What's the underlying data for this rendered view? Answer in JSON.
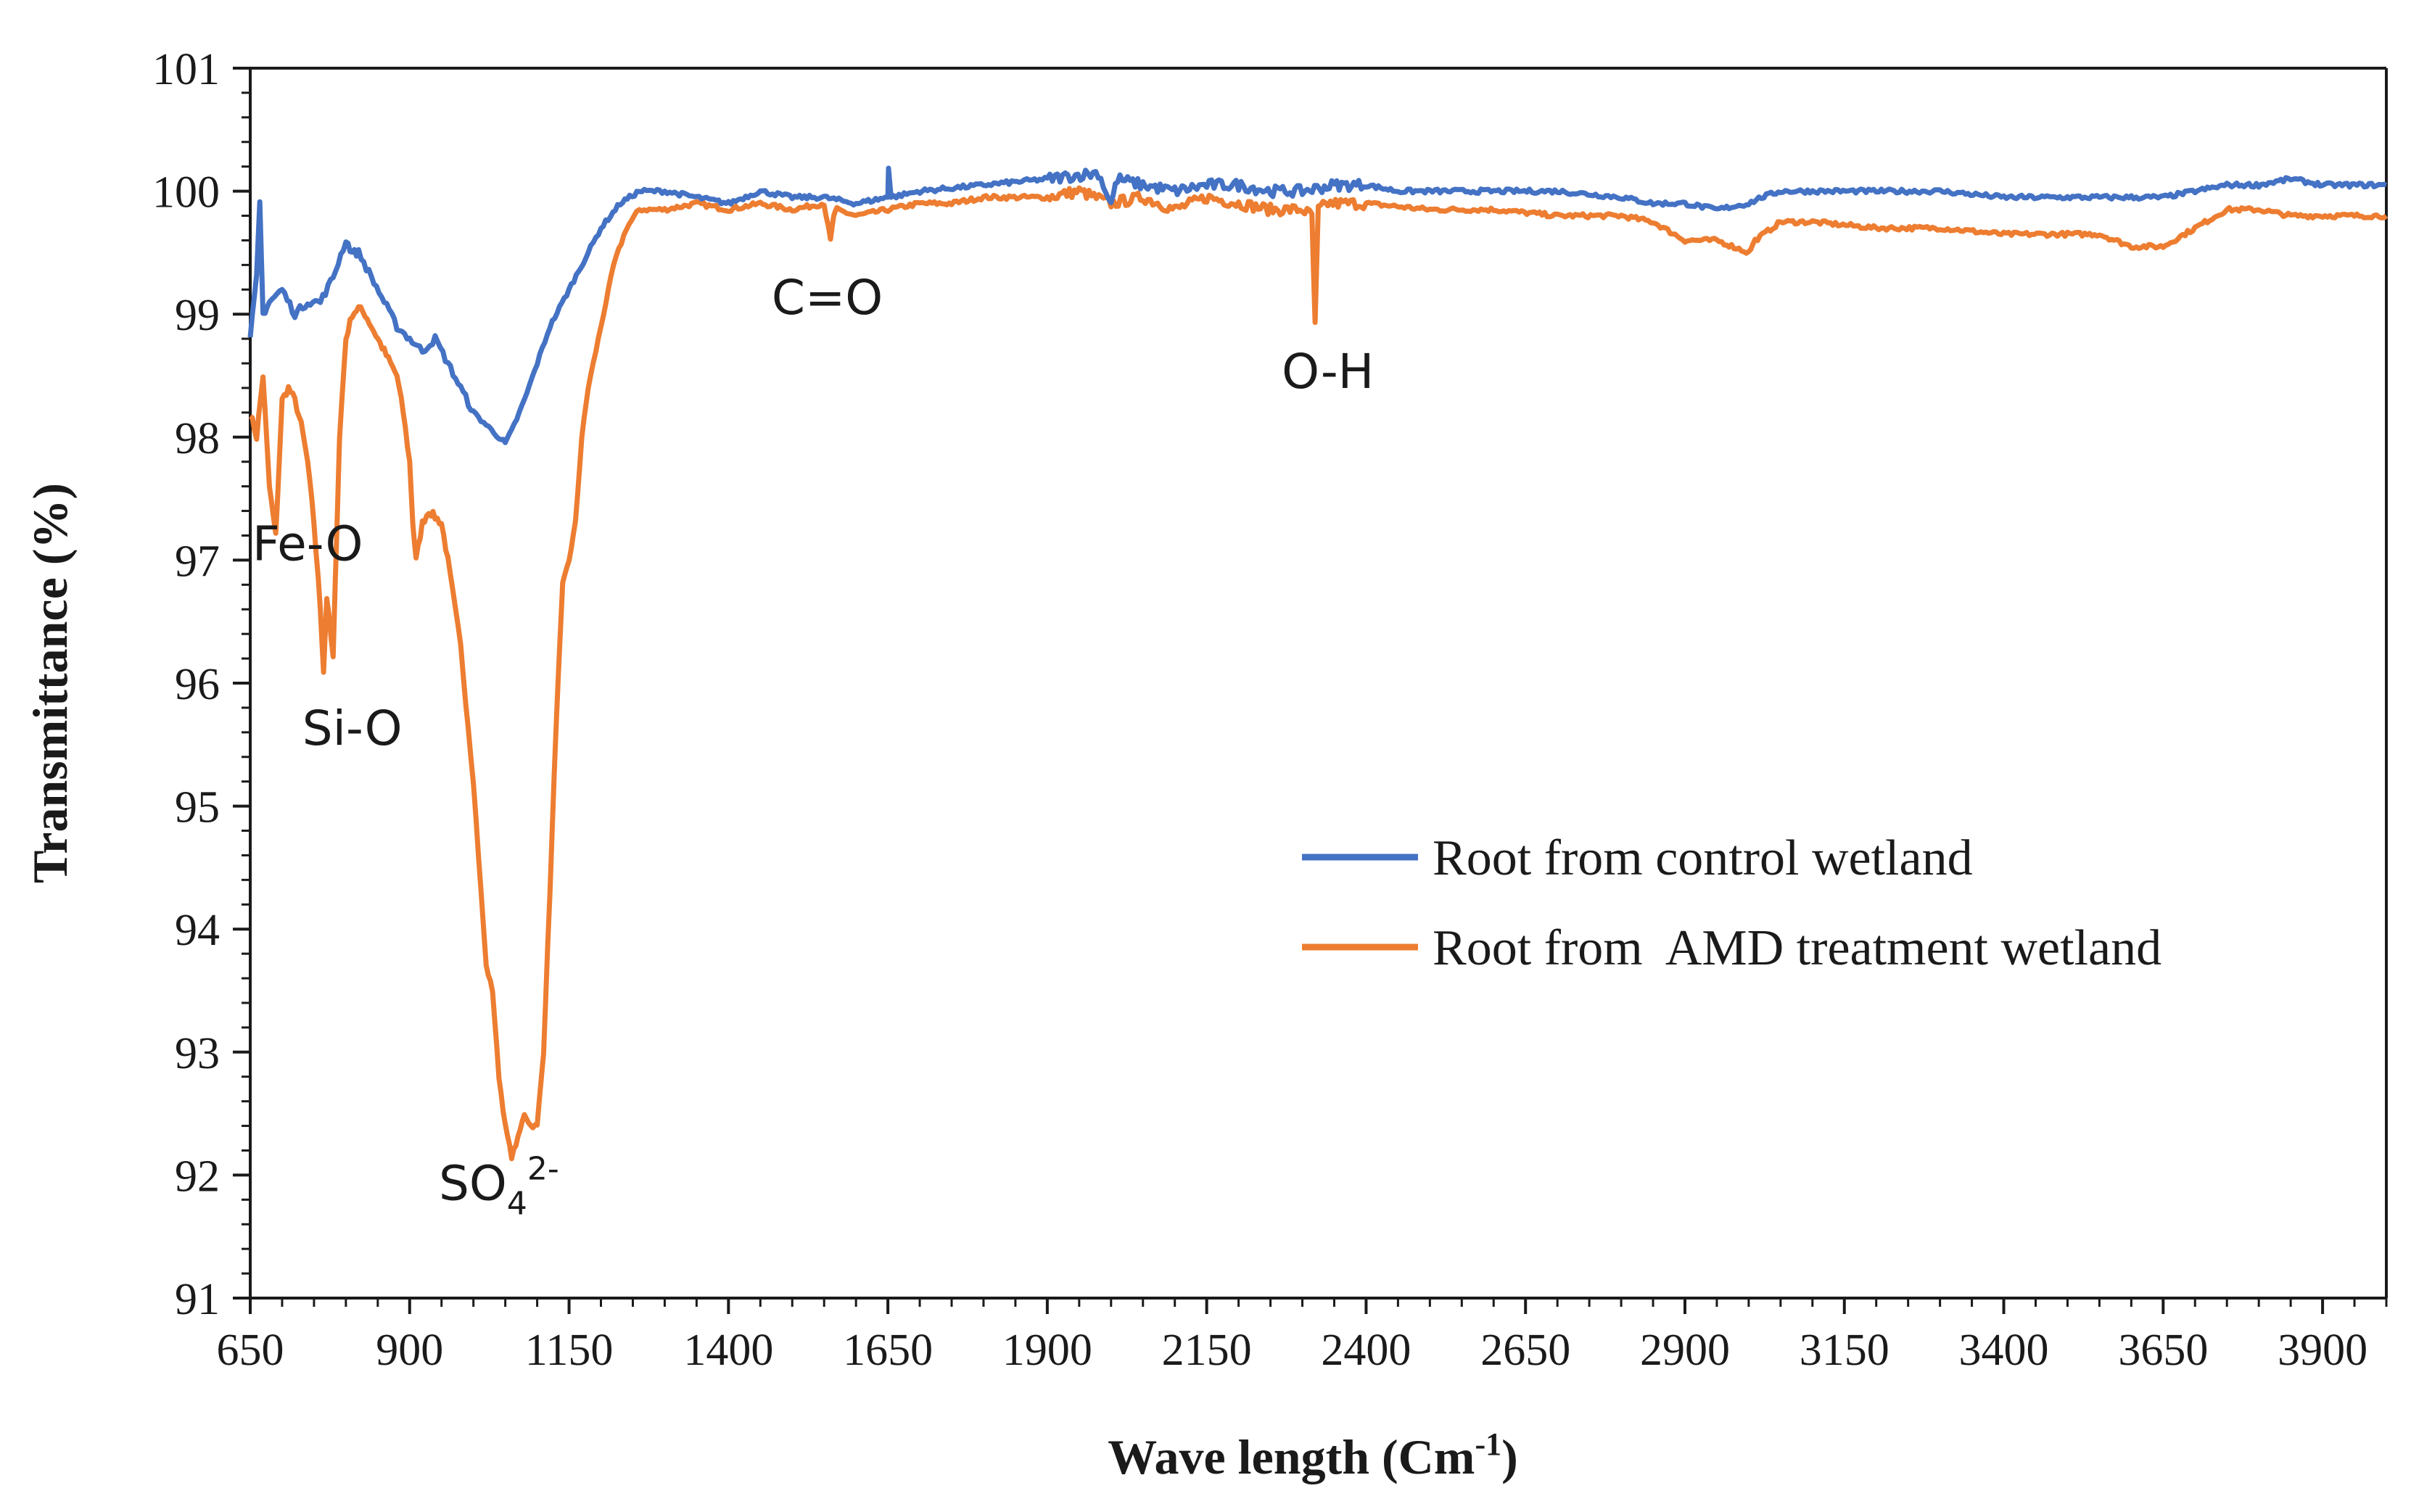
{
  "chart_data": {
    "type": "line",
    "title": "",
    "xlabel": "Wave length (Cm",
    "xlabel_sup": "-1",
    "xlabel_close": ")",
    "ylabel": "Transmittance  (%)",
    "xlim": [
      650,
      4000
    ],
    "ylim": [
      91,
      101
    ],
    "xticks": [
      650,
      900,
      1150,
      1400,
      1650,
      1900,
      2150,
      2400,
      2650,
      2900,
      3150,
      3400,
      3650,
      3900
    ],
    "yticks": [
      91,
      92,
      93,
      94,
      95,
      96,
      97,
      98,
      99,
      100,
      101
    ],
    "grid": false,
    "legend_position": "right-middle",
    "series": [
      {
        "name": "Root from control wetland",
        "color": "#4472c4",
        "x": [
          650,
          660,
          665,
          670,
          680,
          700,
          720,
          740,
          760,
          780,
          800,
          810,
          820,
          840,
          860,
          880,
          900,
          920,
          940,
          960,
          980,
          1000,
          1020,
          1040,
          1050,
          1060,
          1080,
          1100,
          1120,
          1150,
          1180,
          1200,
          1230,
          1260,
          1300,
          1350,
          1400,
          1450,
          1500,
          1550,
          1600,
          1650,
          1651,
          1655,
          1700,
          1800,
          1900,
          1980,
          2000,
          2010,
          2050,
          2100,
          2150,
          2200,
          2250,
          2300,
          2350,
          2400,
          2450,
          2500,
          2600,
          2700,
          2800,
          2850,
          2900,
          2950,
          3000,
          3020,
          3050,
          3100,
          3200,
          3300,
          3400,
          3500,
          3550,
          3600,
          3650,
          3700,
          3750,
          3800,
          3850,
          3900,
          3950,
          4000
        ],
        "y": [
          98.8,
          99.3,
          99.9,
          99.0,
          99.1,
          99.2,
          99.0,
          99.1,
          99.1,
          99.3,
          99.6,
          99.5,
          99.5,
          99.3,
          99.1,
          98.9,
          98.8,
          98.7,
          98.8,
          98.6,
          98.4,
          98.2,
          98.1,
          98.0,
          97.95,
          98.05,
          98.3,
          98.6,
          98.9,
          99.2,
          99.5,
          99.7,
          99.9,
          100.0,
          100.0,
          99.95,
          99.9,
          100.0,
          99.95,
          99.95,
          99.9,
          99.95,
          100.2,
          99.95,
          100.0,
          100.05,
          100.1,
          100.15,
          99.9,
          100.1,
          100.05,
          100.0,
          100.05,
          100.05,
          100.0,
          100.0,
          100.05,
          100.05,
          100.0,
          100.0,
          100.0,
          100.0,
          99.95,
          99.9,
          99.9,
          99.85,
          99.9,
          99.95,
          100.0,
          100.0,
          100.0,
          100.0,
          99.95,
          99.95,
          99.95,
          99.95,
          99.95,
          100.0,
          100.05,
          100.05,
          100.1,
          100.05,
          100.05,
          100.05
        ]
      },
      {
        "name": "Root from  AMD treatment wetland",
        "color": "#ed7d31",
        "x": [
          650,
          660,
          670,
          680,
          690,
          700,
          710,
          720,
          730,
          740,
          750,
          760,
          765,
          770,
          780,
          790,
          800,
          810,
          820,
          830,
          840,
          850,
          860,
          870,
          880,
          890,
          900,
          905,
          910,
          920,
          930,
          940,
          950,
          960,
          980,
          1000,
          1020,
          1030,
          1040,
          1050,
          1060,
          1070,
          1080,
          1090,
          1100,
          1110,
          1120,
          1130,
          1140,
          1150,
          1160,
          1170,
          1180,
          1200,
          1220,
          1240,
          1260,
          1280,
          1300,
          1350,
          1400,
          1450,
          1500,
          1550,
          1560,
          1565,
          1570,
          1600,
          1650,
          1700,
          1750,
          1800,
          1900,
          1950,
          2000,
          2050,
          2100,
          2150,
          2200,
          2250,
          2300,
          2315,
          2320,
          2325,
          2340,
          2400,
          2500,
          2600,
          2700,
          2800,
          2850,
          2900,
          2950,
          3000,
          3010,
          3050,
          3100,
          3200,
          3300,
          3400,
          3500,
          3550,
          3600,
          3620,
          3650,
          3700,
          3750,
          3800,
          3850,
          3900,
          3950,
          4000
        ],
        "y": [
          98.2,
          98.0,
          98.5,
          97.6,
          97.2,
          98.3,
          98.4,
          98.3,
          98.1,
          97.8,
          97.3,
          96.6,
          96.1,
          96.7,
          96.2,
          98.0,
          98.8,
          99.0,
          99.05,
          99.0,
          98.9,
          98.8,
          98.7,
          98.6,
          98.5,
          98.2,
          97.8,
          97.3,
          97.0,
          97.3,
          97.4,
          97.35,
          97.3,
          97.0,
          96.3,
          95.2,
          93.7,
          93.5,
          92.8,
          92.4,
          92.15,
          92.3,
          92.5,
          92.4,
          92.4,
          93.0,
          94.3,
          95.7,
          96.8,
          97.0,
          97.3,
          98.0,
          98.4,
          98.9,
          99.4,
          99.7,
          99.85,
          99.85,
          99.85,
          99.9,
          99.85,
          99.9,
          99.85,
          99.9,
          99.6,
          99.8,
          99.85,
          99.8,
          99.85,
          99.9,
          99.9,
          99.95,
          99.95,
          100.0,
          99.9,
          99.95,
          99.85,
          99.95,
          99.9,
          99.85,
          99.85,
          99.8,
          98.9,
          99.85,
          99.9,
          99.9,
          99.85,
          99.85,
          99.8,
          99.8,
          99.75,
          99.6,
          99.6,
          99.5,
          99.6,
          99.75,
          99.75,
          99.7,
          99.7,
          99.65,
          99.65,
          99.65,
          99.55,
          99.55,
          99.55,
          99.7,
          99.85,
          99.85,
          99.8,
          99.8,
          99.8,
          99.8
        ]
      }
    ],
    "annotations": [
      {
        "id": "fe-o",
        "label": "Fe-O",
        "x": 740,
        "y": 97.0
      },
      {
        "id": "si-o",
        "label": "Si-O",
        "x": 810,
        "y": 95.5
      },
      {
        "id": "so4",
        "label": "SO",
        "sub": "4",
        "sup": "2-",
        "x": 1040,
        "y": 91.8
      },
      {
        "id": "c-o",
        "label": "C=O",
        "x": 1555,
        "y": 99.0
      },
      {
        "id": "o-h",
        "label": "O-H",
        "x": 2340,
        "y": 98.4
      }
    ]
  }
}
